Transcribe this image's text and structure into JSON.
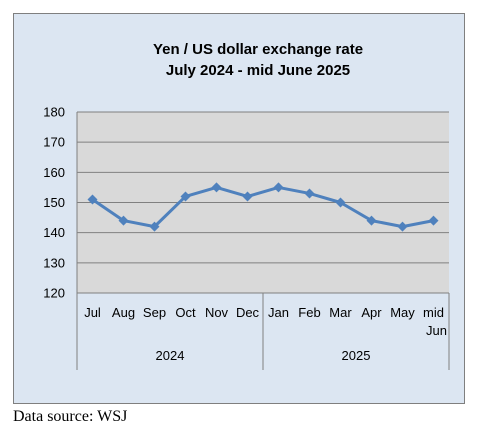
{
  "chart_data": {
    "type": "line",
    "title": [
      "Yen / US dollar exchange rate",
      "July 2024 - mid June 2025"
    ],
    "categories": [
      "Jul",
      "Aug",
      "Sep",
      "Oct",
      "Nov",
      "Dec",
      "Jan",
      "Feb",
      "Mar",
      "Apr",
      "May",
      [
        "mid",
        "Jun"
      ]
    ],
    "groups": [
      {
        "label": "2024",
        "count": 6
      },
      {
        "label": "2025",
        "count": 6
      }
    ],
    "series": [
      {
        "values": [
          151,
          144,
          142,
          152,
          155,
          152,
          155,
          153,
          150,
          144,
          142,
          144
        ]
      }
    ],
    "yticks": [
      120,
      130,
      140,
      150,
      160,
      170,
      180
    ],
    "ylim": [
      120,
      180
    ],
    "grid": true,
    "legend": "none",
    "colors": {
      "line": "#4f81bd",
      "plot_bg": "#d9d9d9",
      "chart_bg": "#dce6f2",
      "grid": "#808080"
    }
  },
  "footer": {
    "source": "Data source: WSJ"
  }
}
